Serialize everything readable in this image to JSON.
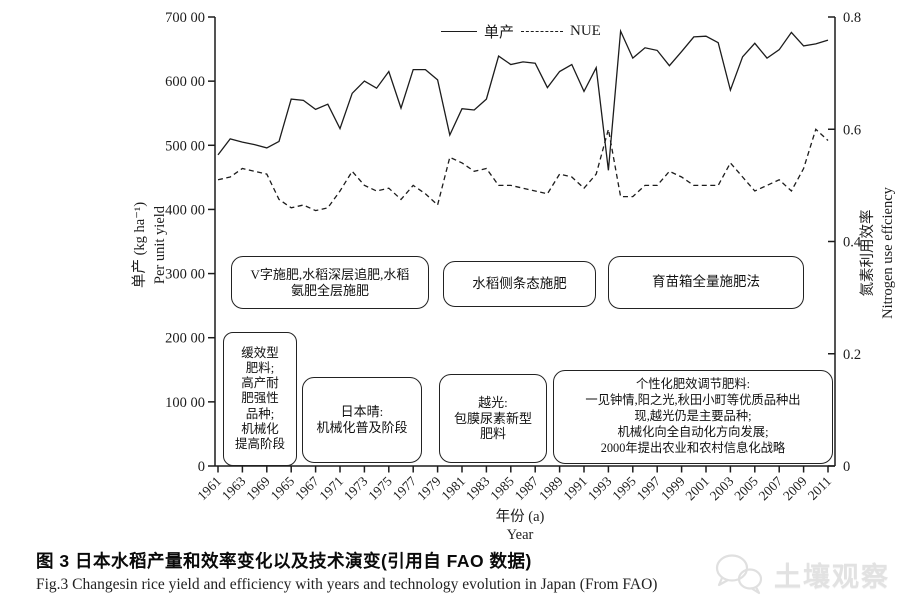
{
  "chart_data": {
    "type": "line",
    "title": "",
    "x": [
      1961,
      1962,
      1963,
      1964,
      1965,
      1966,
      1967,
      1968,
      1969,
      1970,
      1971,
      1972,
      1973,
      1974,
      1975,
      1976,
      1977,
      1978,
      1979,
      1980,
      1981,
      1982,
      1983,
      1984,
      1985,
      1986,
      1987,
      1988,
      1989,
      1990,
      1991,
      1992,
      1993,
      1994,
      1995,
      1996,
      1997,
      1998,
      1999,
      2000,
      2001,
      2002,
      2003,
      2004,
      2005,
      2006,
      2007,
      2008,
      2009,
      2010,
      2011
    ],
    "x_tick_labels": [
      "1961",
      "1963",
      "1969",
      "1965",
      "1967",
      "1971",
      "1973",
      "1975",
      "1977",
      "1979",
      "1981",
      "1983",
      "1985",
      "1987",
      "1989",
      "1991",
      "1993",
      "1995",
      "1997",
      "1999",
      "2001",
      "2003",
      "2005",
      "2007",
      "2009",
      "2011"
    ],
    "series": [
      {
        "name": "单产",
        "axis": "left",
        "style": "solid",
        "values": [
          48500,
          51000,
          50500,
          50100,
          49600,
          50600,
          57200,
          57000,
          55600,
          56400,
          52600,
          58100,
          60000,
          58900,
          61500,
          55800,
          61800,
          61800,
          60200,
          51600,
          55700,
          55500,
          57200,
          63900,
          62600,
          63000,
          62800,
          59000,
          61500,
          62600,
          58400,
          62100,
          46100,
          67800,
          63600,
          65200,
          64800,
          62400,
          64600,
          66900,
          67000,
          66000,
          58600,
          63800,
          65900,
          63600,
          64900,
          67600,
          65500,
          65800,
          66400
        ]
      },
      {
        "name": "NUE",
        "axis": "right",
        "style": "dashed",
        "values": [
          0.51,
          0.515,
          0.53,
          0.525,
          0.52,
          0.475,
          0.46,
          0.465,
          0.455,
          0.46,
          0.49,
          0.525,
          0.5,
          0.49,
          0.495,
          0.475,
          0.5,
          0.485,
          0.465,
          0.55,
          0.54,
          0.525,
          0.53,
          0.5,
          0.5,
          0.495,
          0.49,
          0.485,
          0.52,
          0.515,
          0.495,
          0.52,
          0.6,
          0.48,
          0.48,
          0.5,
          0.5,
          0.525,
          0.515,
          0.5,
          0.5,
          0.5,
          0.54,
          0.515,
          0.49,
          0.5,
          0.51,
          0.49,
          0.53,
          0.6,
          0.58
        ]
      }
    ],
    "left_axis": {
      "label_cn": "单产 (kg ha⁻¹)",
      "label_en": "Per unit yield",
      "range": [
        0,
        70000
      ],
      "tick_labels": [
        "0",
        "100 00",
        "200 00",
        "300 00",
        "400 00",
        "500 00",
        "600 00",
        "700 00"
      ]
    },
    "right_axis": {
      "label_cn": "氮素利用效率",
      "label_en": "Nitrogen use effciency",
      "range": [
        0,
        0.8
      ],
      "tick_labels": [
        "0",
        "0.2",
        "0.4",
        "0.6",
        "0.8"
      ]
    },
    "x_axis": {
      "label_cn": "年份 (a)",
      "label_en": "Year"
    },
    "legend": {
      "yield_label": "单产",
      "nue_label": "NUE",
      "position": "top-center"
    },
    "grid": false,
    "line_color": "#1c1c1c"
  },
  "annotations": {
    "box_v": {
      "text": "V字施肥,水稻深层追肥,水稻\n氨肥全层施肥"
    },
    "box_side": {
      "text": "水稻侧条态施肥"
    },
    "box_nursery": {
      "text": "育苗箱全量施肥法"
    },
    "box_slow": {
      "text": "缓效型\n肥料;\n高产耐\n肥强性\n品种;\n机械化\n提高阶段"
    },
    "box_nihonbare": {
      "text": "日本晴:\n机械化普及阶段"
    },
    "box_koshihikari": {
      "text": "越光:\n包膜尿素新型\n肥料"
    },
    "box_personal": {
      "text": "个性化肥效调节肥料:\n一见钟情,阳之光,秋田小町等优质品种出\n现,越光仍是主要品种;\n机械化向全自动化方向发展;\n2000年提出农业和农村信息化战略"
    }
  },
  "caption": {
    "cn": "图 3  日本水稻产量和效率变化以及技术演变(引用自 FAO 数据)",
    "en": "Fig.3  Changesin rice yield and efficiency with years and technology evolution in Japan (From FAO)"
  },
  "watermark": {
    "text": "土壤观察"
  },
  "colors": {
    "line": "#1c1c1c",
    "box_border": "#222222",
    "watermark": "#e2e2e2"
  }
}
